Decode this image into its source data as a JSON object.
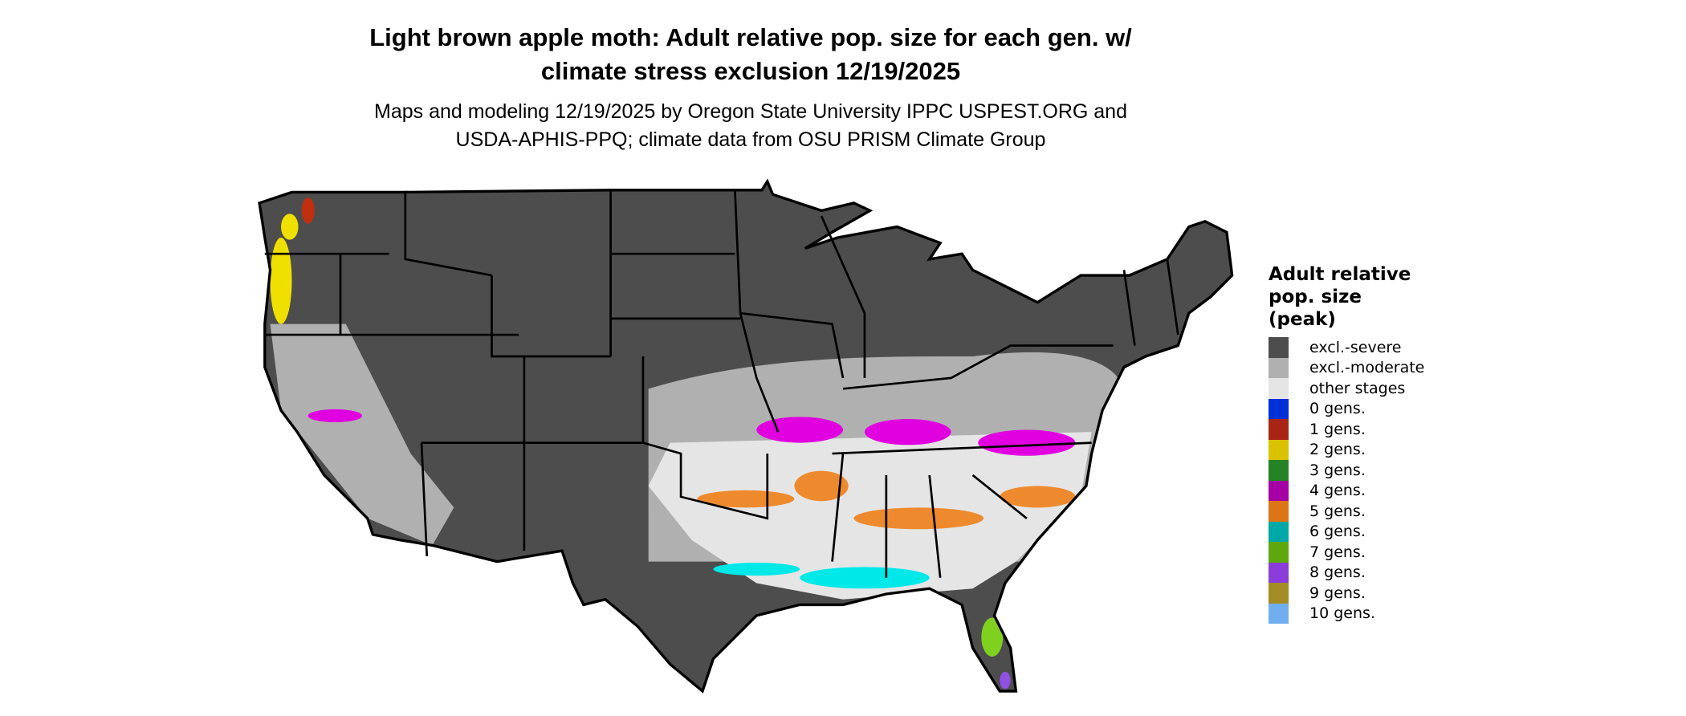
{
  "title_line1": "Light brown apple moth: Adult relative pop. size for each gen. w/",
  "title_line2": "climate stress exclusion 12/19/2025",
  "subtitle_line1": "Maps and modeling 12/19/2025 by Oregon State University IPPC USPEST.ORG and",
  "subtitle_line2": "USDA-APHIS-PPQ; climate data from OSU PRISM Climate Group",
  "legend": {
    "title_line1": "Adult relative",
    "title_line2": "pop. size",
    "title_line3": "(peak)",
    "items": [
      {
        "label": "excl.-severe",
        "color": "#4d4d4d"
      },
      {
        "label": "excl.-moderate",
        "color": "#b0b0b0"
      },
      {
        "label": "other stages",
        "color": "#e5e5e5"
      },
      {
        "label": "0 gens.",
        "color": "#0030d8"
      },
      {
        "label": "1 gens.",
        "color": "#a82515"
      },
      {
        "label": "2 gens.",
        "color": "#dac200"
      },
      {
        "label": "3 gens.",
        "color": "#258225"
      },
      {
        "label": "4 gens.",
        "color": "#a500a5"
      },
      {
        "label": "5 gens.",
        "color": "#dc7515"
      },
      {
        "label": "6 gens.",
        "color": "#00a8a8"
      },
      {
        "label": "7 gens.",
        "color": "#5ea80d"
      },
      {
        "label": "8 gens.",
        "color": "#8a3dd8"
      },
      {
        "label": "9 gens.",
        "color": "#a38c25"
      },
      {
        "label": "10 gens.",
        "color": "#70aef0"
      }
    ]
  },
  "map_colors": {
    "severe": "#4d4d4d",
    "moderate": "#b0b0b0",
    "other": "#e5e5e5",
    "magenta": "#e000e0",
    "orange": "#ee8a2e",
    "cyan": "#00e8e8",
    "yellow": "#f0e000",
    "green": "#40b040",
    "red": "#c03010",
    "lime": "#80d020",
    "purple": "#9050e0"
  }
}
